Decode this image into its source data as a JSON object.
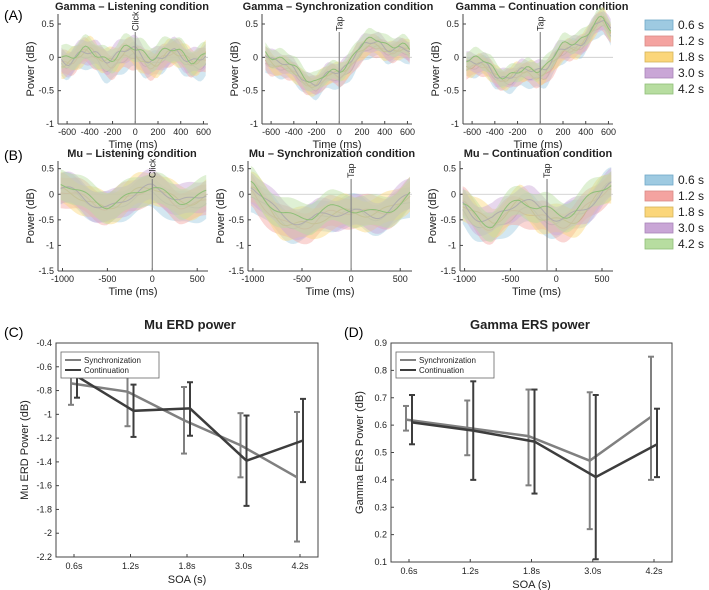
{
  "panel_labels": [
    "(A)",
    "(B)",
    "(C)",
    "(D)"
  ],
  "legend": {
    "entries": [
      "0.6 s",
      "1.2 s",
      "1.8 s",
      "3.0 s",
      "4.2 s"
    ],
    "colors": [
      "#9ecae1",
      "#f4a3a0",
      "#fbd67a",
      "#c9a6d6",
      "#b7dda0"
    ],
    "line_colors": [
      "#6fa8c8",
      "#d98a86",
      "#d4b45a",
      "#a884b8",
      "#8fbf78"
    ]
  },
  "chart_data": [
    {
      "id": "gamma-listening",
      "type": "line",
      "title": "Gamma – Listening condition",
      "xlabel": "Time (ms)",
      "ylabel": "Power (dB)",
      "xlim": [
        -680,
        640
      ],
      "ylim": [
        -1,
        0.65
      ],
      "xticks": [
        -600,
        -400,
        -200,
        0,
        200,
        400,
        600
      ],
      "yticks": [
        -1,
        -0.5,
        0,
        0.5
      ],
      "event": {
        "x": 0,
        "label": "Click"
      },
      "band": 0.18,
      "seed": 11,
      "amp": 0.15,
      "wiggle": 60,
      "trend": [
        [
          -650,
          0
        ],
        [
          650,
          0
        ]
      ]
    },
    {
      "id": "gamma-sync",
      "type": "line",
      "title": "Gamma – Synchronization condition",
      "xlabel": "Time (ms)",
      "ylabel": "Power (dB)",
      "xlim": [
        -680,
        640
      ],
      "ylim": [
        -1,
        0.65
      ],
      "xticks": [
        -600,
        -400,
        -200,
        0,
        200,
        400,
        600
      ],
      "yticks": [
        -1,
        -0.5,
        0,
        0.5
      ],
      "event": {
        "x": 0,
        "label": "Tap"
      },
      "band": 0.14,
      "seed": 23,
      "amp": 0.1,
      "wiggle": 55,
      "trend": [
        [
          -650,
          0.05
        ],
        [
          -450,
          -0.2
        ],
        [
          -200,
          -0.4
        ],
        [
          0,
          -0.25
        ],
        [
          150,
          0.05
        ],
        [
          350,
          0.2
        ],
        [
          550,
          0.1
        ],
        [
          650,
          0
        ]
      ]
    },
    {
      "id": "gamma-cont",
      "type": "line",
      "title": "Gamma – Continuation condition",
      "xlabel": "Time (ms)",
      "ylabel": "Power (dB)",
      "xlim": [
        -680,
        640
      ],
      "ylim": [
        -1,
        0.65
      ],
      "xticks": [
        -600,
        -400,
        -200,
        0,
        200,
        400,
        600
      ],
      "yticks": [
        -1,
        -0.5,
        0,
        0.5
      ],
      "event": {
        "x": 0,
        "label": "Tap"
      },
      "band": 0.14,
      "seed": 37,
      "amp": 0.12,
      "wiggle": 55,
      "trend": [
        [
          -650,
          -0.05
        ],
        [
          -400,
          -0.25
        ],
        [
          -150,
          -0.3
        ],
        [
          50,
          -0.15
        ],
        [
          250,
          0.1
        ],
        [
          450,
          0.4
        ],
        [
          550,
          0.5
        ],
        [
          650,
          0.3
        ]
      ]
    },
    {
      "id": "mu-listening",
      "type": "line",
      "title": "Mu – Listening condition",
      "xlabel": "Time (ms)",
      "ylabel": "Power (dB)",
      "xlim": [
        -1050,
        620
      ],
      "ylim": [
        -1.5,
        0.65
      ],
      "xticks": [
        -1000,
        -500,
        0,
        500
      ],
      "yticks": [
        -1.5,
        -1,
        -0.5,
        0,
        0.5
      ],
      "event": {
        "x": 0,
        "label": "Click"
      },
      "band": 0.3,
      "seed": 5,
      "amp": 0.2,
      "wiggle": 150,
      "trend": [
        [
          -1000,
          0
        ],
        [
          -500,
          -0.15
        ],
        [
          0,
          0
        ],
        [
          300,
          -0.1
        ],
        [
          600,
          0
        ]
      ]
    },
    {
      "id": "mu-sync",
      "type": "line",
      "title": "Mu – Synchronization condition",
      "xlabel": "Time (ms)",
      "ylabel": "Power (dB)",
      "xlim": [
        -1050,
        620
      ],
      "ylim": [
        -1.5,
        0.65
      ],
      "xticks": [
        -1000,
        -500,
        0,
        500
      ],
      "yticks": [
        -1.5,
        -1,
        -0.5,
        0,
        0.5
      ],
      "event": {
        "x": 0,
        "label": "Tap"
      },
      "band": 0.3,
      "seed": 17,
      "amp": 0.25,
      "wiggle": 150,
      "trend": [
        [
          -1000,
          0
        ],
        [
          -700,
          -0.35
        ],
        [
          -400,
          -0.55
        ],
        [
          -150,
          -0.5
        ],
        [
          100,
          -0.3
        ],
        [
          400,
          -0.2
        ],
        [
          600,
          -0.1
        ]
      ]
    },
    {
      "id": "mu-cont",
      "type": "line",
      "title": "Mu – Continuation condition",
      "xlabel": "Time (ms)",
      "ylabel": "Power (dB)",
      "xlim": [
        -1050,
        620
      ],
      "ylim": [
        -1.5,
        0.65
      ],
      "xticks": [
        -1000,
        -500,
        0,
        500
      ],
      "yticks": [
        -1.5,
        -1,
        -0.5,
        0,
        0.5
      ],
      "event": {
        "x": -100,
        "label": "Tap"
      },
      "band": 0.28,
      "seed": 29,
      "amp": 0.3,
      "wiggle": 150,
      "trend": [
        [
          -1000,
          -0.2
        ],
        [
          -700,
          -0.45
        ],
        [
          -400,
          -0.35
        ],
        [
          -200,
          -0.5
        ],
        [
          0,
          -0.4
        ],
        [
          300,
          -0.2
        ],
        [
          600,
          0
        ]
      ]
    },
    {
      "id": "mu-erd",
      "type": "line",
      "title": "Mu ERD power",
      "xlabel": "SOA (s)",
      "ylabel": "Mu ERD Power (dB)",
      "categories": [
        "0.6s",
        "1.2s",
        "1.8s",
        "3.0s",
        "4.2s"
      ],
      "ylim": [
        -2.2,
        -0.4
      ],
      "yticks": [
        -2.2,
        -2,
        -1.8,
        -1.6,
        -1.4,
        -1.2,
        -1,
        -0.8,
        -0.6,
        -0.4
      ],
      "series": [
        {
          "name": "Synchronization",
          "color": "#808080",
          "values": [
            -0.74,
            -0.81,
            -1.05,
            -1.26,
            -1.53
          ],
          "lower": [
            -0.92,
            -1.1,
            -1.33,
            -1.53,
            -2.07
          ],
          "upper": [
            -0.59,
            -0.58,
            -0.77,
            -0.99,
            -0.98
          ]
        },
        {
          "name": "Continuation",
          "color": "#3d3d3d",
          "values": [
            -0.68,
            -0.97,
            -0.95,
            -1.39,
            -1.22
          ],
          "lower": [
            -0.86,
            -1.19,
            -1.18,
            -1.77,
            -1.57
          ],
          "upper": [
            -0.53,
            -0.75,
            -0.73,
            -1.01,
            -0.87
          ]
        }
      ]
    },
    {
      "id": "gamma-ers",
      "type": "line",
      "title": "Gamma ERS power",
      "xlabel": "SOA (s)",
      "ylabel": "Gamma ERS Power (dB)",
      "categories": [
        "0.6s",
        "1.2s",
        "1.8s",
        "3.0s",
        "4.2s"
      ],
      "ylim": [
        0.1,
        0.9
      ],
      "yticks": [
        0.1,
        0.2,
        0.3,
        0.4,
        0.5,
        0.6,
        0.7,
        0.8,
        0.9
      ],
      "series": [
        {
          "name": "Synchronization",
          "color": "#808080",
          "values": [
            0.62,
            0.59,
            0.56,
            0.47,
            0.63
          ],
          "lower": [
            0.58,
            0.49,
            0.38,
            0.22,
            0.4
          ],
          "upper": [
            0.67,
            0.69,
            0.73,
            0.72,
            0.85
          ]
        },
        {
          "name": "Continuation",
          "color": "#3d3d3d",
          "values": [
            0.61,
            0.58,
            0.54,
            0.41,
            0.53
          ],
          "lower": [
            0.53,
            0.4,
            0.35,
            0.11,
            0.41
          ],
          "upper": [
            0.71,
            0.76,
            0.73,
            0.71,
            0.66
          ]
        }
      ]
    }
  ]
}
